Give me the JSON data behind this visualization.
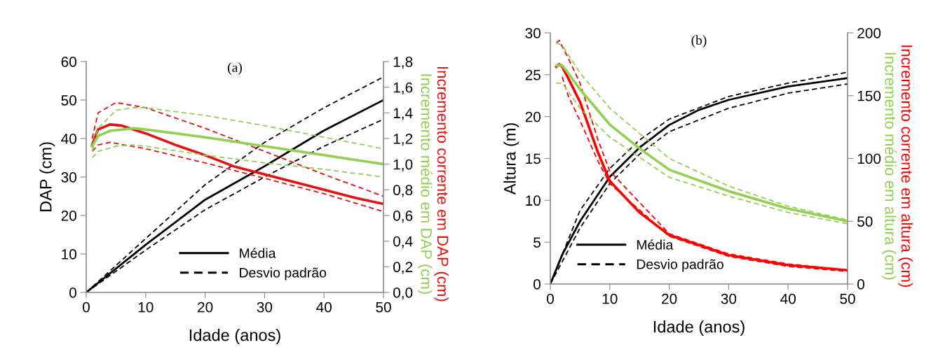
{
  "chart_data": [
    {
      "type": "line",
      "title": "(a)",
      "xlabel": "Idade (anos)",
      "ylabel": "DAP (cm)",
      "y2label": [
        {
          "text": "Incremento médio em DAP (cm)",
          "color": "#92d050"
        },
        {
          "text": "Incremento corrente em DAP (cm)",
          "color": "#e81010"
        }
      ],
      "xlim": [
        0,
        50
      ],
      "xticks": [
        0,
        10,
        20,
        30,
        40,
        50
      ],
      "ylim": [
        0,
        60
      ],
      "yticks": [
        0,
        10,
        20,
        30,
        40,
        50,
        60
      ],
      "y2lim": [
        0,
        1.8
      ],
      "y2ticks": [
        {
          "value": 0,
          "label": "0,0"
        },
        {
          "value": 0.2,
          "label": "0,2"
        },
        {
          "value": 0.4,
          "label": "0,4"
        },
        {
          "value": 0.6,
          "label": "0,6"
        },
        {
          "value": 0.8,
          "label": "0,8"
        },
        {
          "value": 1.0,
          "label": "1,0"
        },
        {
          "value": 1.2,
          "label": "1,2"
        },
        {
          "value": 1.4,
          "label": "1,4"
        },
        {
          "value": 1.6,
          "label": "1,6"
        },
        {
          "value": 1.8,
          "label": "1,8"
        }
      ],
      "grid": false,
      "legend": "bottom right",
      "series": [
        {
          "name": "Média",
          "color": "#000000",
          "line_style": "solid",
          "x": [
            0,
            10,
            20,
            30,
            40,
            50
          ],
          "values": [
            0,
            12.4,
            24.1,
            32.8,
            42.1,
            50
          ]
        },
        {
          "name": "Desvio padrão",
          "color": "#000000",
          "line_style": "dashed",
          "x": [
            0,
            10,
            20,
            30,
            40,
            50
          ],
          "values": [
            0,
            14,
            28,
            39,
            48,
            56
          ]
        },
        {
          "color": "#000000",
          "line_style": "dashed",
          "x": [
            0,
            10,
            20,
            30,
            40,
            50
          ],
          "values": [
            0,
            11,
            21.5,
            30,
            38,
            45
          ]
        },
        {
          "color": "#e81010",
          "line_style": "solid",
          "axis": "y2",
          "x": [
            1,
            2,
            4,
            6,
            10,
            15,
            20,
            25,
            30,
            35,
            40,
            45,
            50
          ],
          "values": [
            1.15,
            1.27,
            1.31,
            1.3,
            1.24,
            1.15,
            1.07,
            0.98,
            0.92,
            0.86,
            0.8,
            0.74,
            0.69
          ]
        },
        {
          "color": "#e81010",
          "line_style": "dashed",
          "axis": "y2",
          "x": [
            1,
            2,
            5,
            10,
            20,
            30,
            40,
            50
          ],
          "values": [
            1.2,
            1.4,
            1.48,
            1.44,
            1.28,
            1.1,
            0.92,
            0.75
          ]
        },
        {
          "color": "#e81010",
          "line_style": "dashed",
          "axis": "y2",
          "x": [
            1,
            2,
            4,
            10,
            20,
            30,
            40,
            50
          ],
          "values": [
            1.1,
            1.15,
            1.17,
            1.12,
            1.01,
            0.89,
            0.77,
            0.63
          ]
        },
        {
          "color": "#92d050",
          "line_style": "solid",
          "axis": "y2",
          "x": [
            1,
            2,
            4,
            8,
            10,
            20,
            30,
            40,
            50
          ],
          "values": [
            1.14,
            1.22,
            1.26,
            1.28,
            1.27,
            1.21,
            1.14,
            1.07,
            1.0
          ]
        },
        {
          "color": "#92d050",
          "line_style": "dashed",
          "axis": "y2",
          "x": [
            1,
            2,
            5,
            8,
            10,
            20,
            30,
            40,
            50
          ],
          "values": [
            1.1,
            1.28,
            1.42,
            1.44,
            1.44,
            1.38,
            1.3,
            1.21,
            1.12
          ]
        },
        {
          "color": "#92d050",
          "line_style": "dashed",
          "axis": "y2",
          "x": [
            1,
            2,
            5,
            8,
            10,
            20,
            30,
            40,
            50
          ],
          "values": [
            1.05,
            1.1,
            1.14,
            1.15,
            1.14,
            1.07,
            1.01,
            0.96,
            0.9
          ]
        }
      ]
    },
    {
      "type": "line",
      "title": "(b)",
      "xlabel": "Idade (anos)",
      "ylabel": "Altura (m)",
      "y2label": [
        {
          "text": "Incremento médio em altura (cm)",
          "color": "#92d050"
        },
        {
          "text": "Incremento corrente em altura (cm)",
          "color": "#ff0000"
        }
      ],
      "xlim": [
        0,
        50
      ],
      "xticks": [
        0,
        10,
        20,
        30,
        40,
        50
      ],
      "ylim": [
        0,
        30
      ],
      "yticks": [
        0,
        5,
        10,
        15,
        20,
        25,
        30
      ],
      "y2lim": [
        0,
        200
      ],
      "y2ticks": [
        0,
        50,
        100,
        150,
        200
      ],
      "grid": false,
      "legend": "bottom left",
      "series": [
        {
          "name": "Média",
          "color": "#000000",
          "line_style": "solid",
          "x": [
            0,
            2,
            5,
            10,
            15,
            20,
            25,
            30,
            40,
            50
          ],
          "values": [
            0,
            3.5,
            7.5,
            12.8,
            16.3,
            19,
            20.8,
            22,
            23.6,
            24.6
          ]
        },
        {
          "name": "Desvio padrão",
          "color": "#000000",
          "line_style": "dashed",
          "x": [
            0,
            5,
            10,
            15,
            20,
            30,
            40,
            50
          ],
          "values": [
            0,
            8.8,
            13.8,
            17.2,
            19.7,
            22.4,
            24,
            25.3
          ]
        },
        {
          "color": "#000000",
          "line_style": "dashed",
          "x": [
            0,
            5,
            10,
            15,
            20,
            30,
            40,
            50
          ],
          "values": [
            0,
            6.7,
            12,
            15.5,
            18.2,
            21,
            22.8,
            23.9
          ]
        },
        {
          "color": "#ff0000",
          "line_style": "solid",
          "axis": "y2",
          "x": [
            1,
            1.5,
            2,
            3,
            5,
            8,
            10,
            15,
            20,
            30,
            40,
            50
          ],
          "values": [
            173,
            175,
            173,
            164,
            145,
            105,
            82,
            57,
            39,
            23,
            15,
            11
          ]
        },
        {
          "color": "#ff0000",
          "line_style": "dashed",
          "axis": "y2",
          "x": [
            1,
            1.5,
            3,
            5,
            8,
            10,
            20,
            30,
            40,
            50
          ],
          "values": [
            192,
            194,
            180,
            160,
            115,
            90,
            40,
            24,
            16,
            11
          ]
        },
        {
          "color": "#ff0000",
          "line_style": "dashed",
          "axis": "y2",
          "x": [
            2,
            3,
            5,
            8,
            10,
            20,
            30,
            40,
            50
          ],
          "values": [
            165,
            150,
            130,
            98,
            80,
            38,
            22,
            14,
            10
          ]
        },
        {
          "color": "#92d050",
          "line_style": "solid",
          "axis": "y2",
          "x": [
            1,
            2,
            3,
            5,
            10,
            15,
            20,
            30,
            40,
            50
          ],
          "values": [
            174,
            174,
            168,
            155,
            127,
            108,
            91,
            74,
            60,
            50
          ]
        },
        {
          "color": "#92d050",
          "line_style": "dashed",
          "axis": "y2",
          "x": [
            1,
            2,
            5,
            10,
            20,
            30,
            40,
            50
          ],
          "values": [
            192,
            190,
            168,
            140,
            100,
            78,
            62,
            51
          ]
        },
        {
          "color": "#92d050",
          "line_style": "dashed",
          "axis": "y2",
          "x": [
            1,
            2,
            5,
            10,
            20,
            30,
            40,
            50
          ],
          "values": [
            160,
            160,
            140,
            117,
            85,
            70,
            57,
            48
          ]
        }
      ]
    }
  ]
}
